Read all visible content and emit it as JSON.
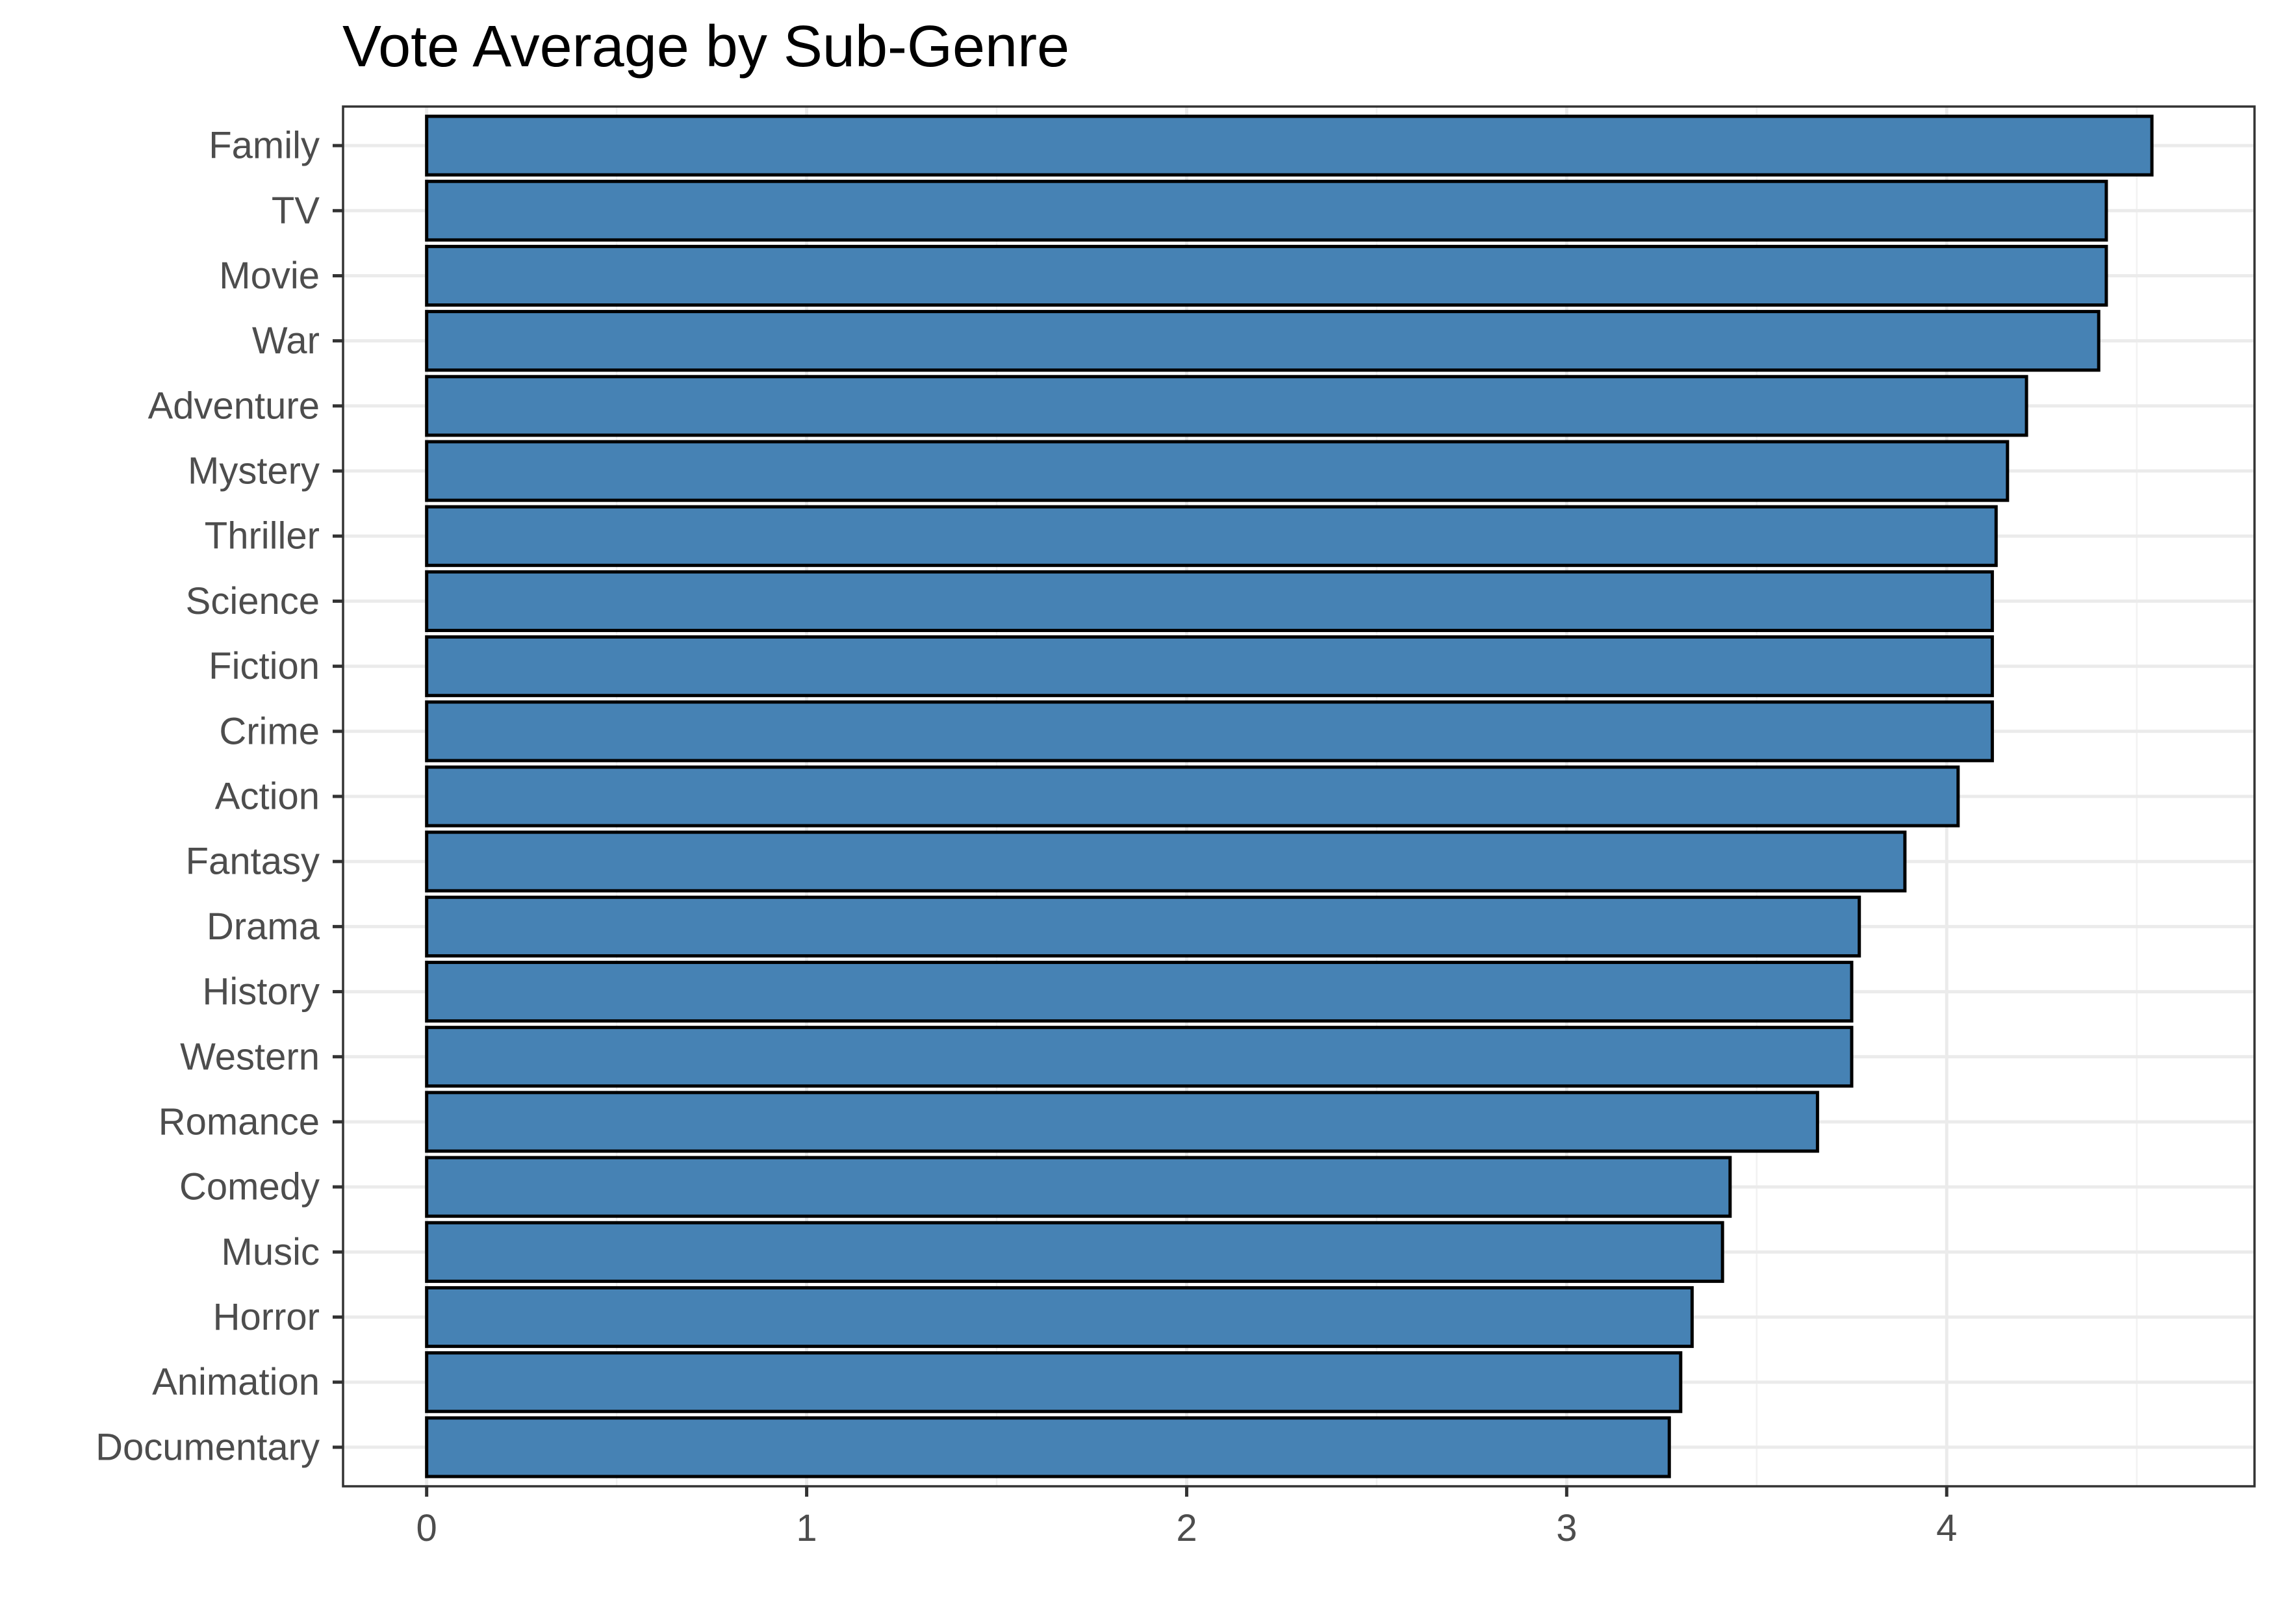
{
  "chart_data": {
    "type": "bar",
    "orientation": "horizontal",
    "title": "Vote Average by Sub-Genre",
    "xlabel": "",
    "ylabel": "",
    "categories": [
      "Family",
      "TV",
      "Movie",
      "War",
      "Adventure",
      "Mystery",
      "Thriller",
      "Science",
      "Fiction",
      "Crime",
      "Action",
      "Fantasy",
      "Drama",
      "History",
      "Western",
      "Romance",
      "Comedy",
      "Music",
      "Horror",
      "Animation",
      "Documentary"
    ],
    "values": [
      4.54,
      4.42,
      4.42,
      4.4,
      4.21,
      4.16,
      4.13,
      4.12,
      4.12,
      4.12,
      4.03,
      3.89,
      3.77,
      3.75,
      3.75,
      3.66,
      3.43,
      3.41,
      3.33,
      3.3,
      3.27
    ],
    "xlim": [
      -0.22,
      4.81
    ],
    "xticks": [
      0,
      1,
      2,
      3,
      4
    ],
    "grid": true,
    "legend": "none",
    "bar_fill": "#4682b4",
    "bar_outline": "#000000"
  }
}
